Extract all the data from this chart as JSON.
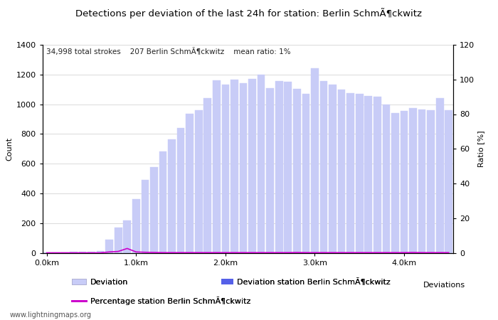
{
  "title": "Detections per deviation of the last 24h for station: Berlin SchmÃ¶ckwitz",
  "subtitle": "34,998 total strokes    207 Berlin SchmÃ¶ckwitz    mean ratio: 1%",
  "ylabel_left": "Count",
  "ylabel_right": "Ratio [%]",
  "xlabel_bottom": "Deviations",
  "x_tick_labels": [
    "0.0km",
    "1.0km",
    "2.0km",
    "3.0km",
    "4.0km"
  ],
  "x_tick_positions": [
    0,
    10,
    20,
    30,
    40
  ],
  "ylim_left": [
    0,
    1400
  ],
  "ylim_right": [
    0,
    120
  ],
  "yticks_left": [
    0,
    200,
    400,
    600,
    800,
    1000,
    1200,
    1400
  ],
  "yticks_right": [
    0,
    20,
    40,
    60,
    80,
    100,
    120
  ],
  "bar_color_light": "#c8ccf7",
  "bar_color_dark": "#5560e8",
  "line_color": "#cc00cc",
  "background_color": "#ffffff",
  "grid_color": "#cccccc",
  "total_bars": 46,
  "deviation_counts": [
    2,
    3,
    4,
    5,
    5,
    8,
    10,
    90,
    170,
    220,
    360,
    490,
    575,
    680,
    765,
    840,
    935,
    960,
    1040,
    1160,
    1130,
    1165,
    1140,
    1170,
    1200,
    1110,
    1155,
    1150,
    1105,
    1070,
    1240,
    1155,
    1130,
    1100,
    1075,
    1070,
    1055,
    1050,
    1000,
    940,
    955,
    975,
    965,
    960,
    1040,
    960
  ],
  "ratio_values": [
    0,
    0,
    0,
    0,
    0,
    0,
    0,
    0.5,
    0.8,
    2.5,
    0.5,
    0.3,
    0.2,
    0.1,
    0.1,
    0.1,
    0.1,
    0.1,
    0.1,
    0.1,
    0.1,
    0.1,
    0.1,
    0.1,
    0.1,
    0.1,
    0.1,
    0.1,
    0.2,
    0.1,
    0.1,
    0.1,
    0.1,
    0.1,
    0.1,
    0.1,
    0.1,
    0.1,
    0.1,
    0.1,
    0.1,
    0.2,
    0.1,
    0.1,
    0.1,
    0.1
  ],
  "legend_deviation_label": "Deviation",
  "legend_station_label": "Deviation station Berlin SchmÃ¶ckwitz",
  "legend_ratio_label": "Percentage station Berlin SchmÃ¶ckwitz",
  "watermark": "www.lightningmaps.org"
}
